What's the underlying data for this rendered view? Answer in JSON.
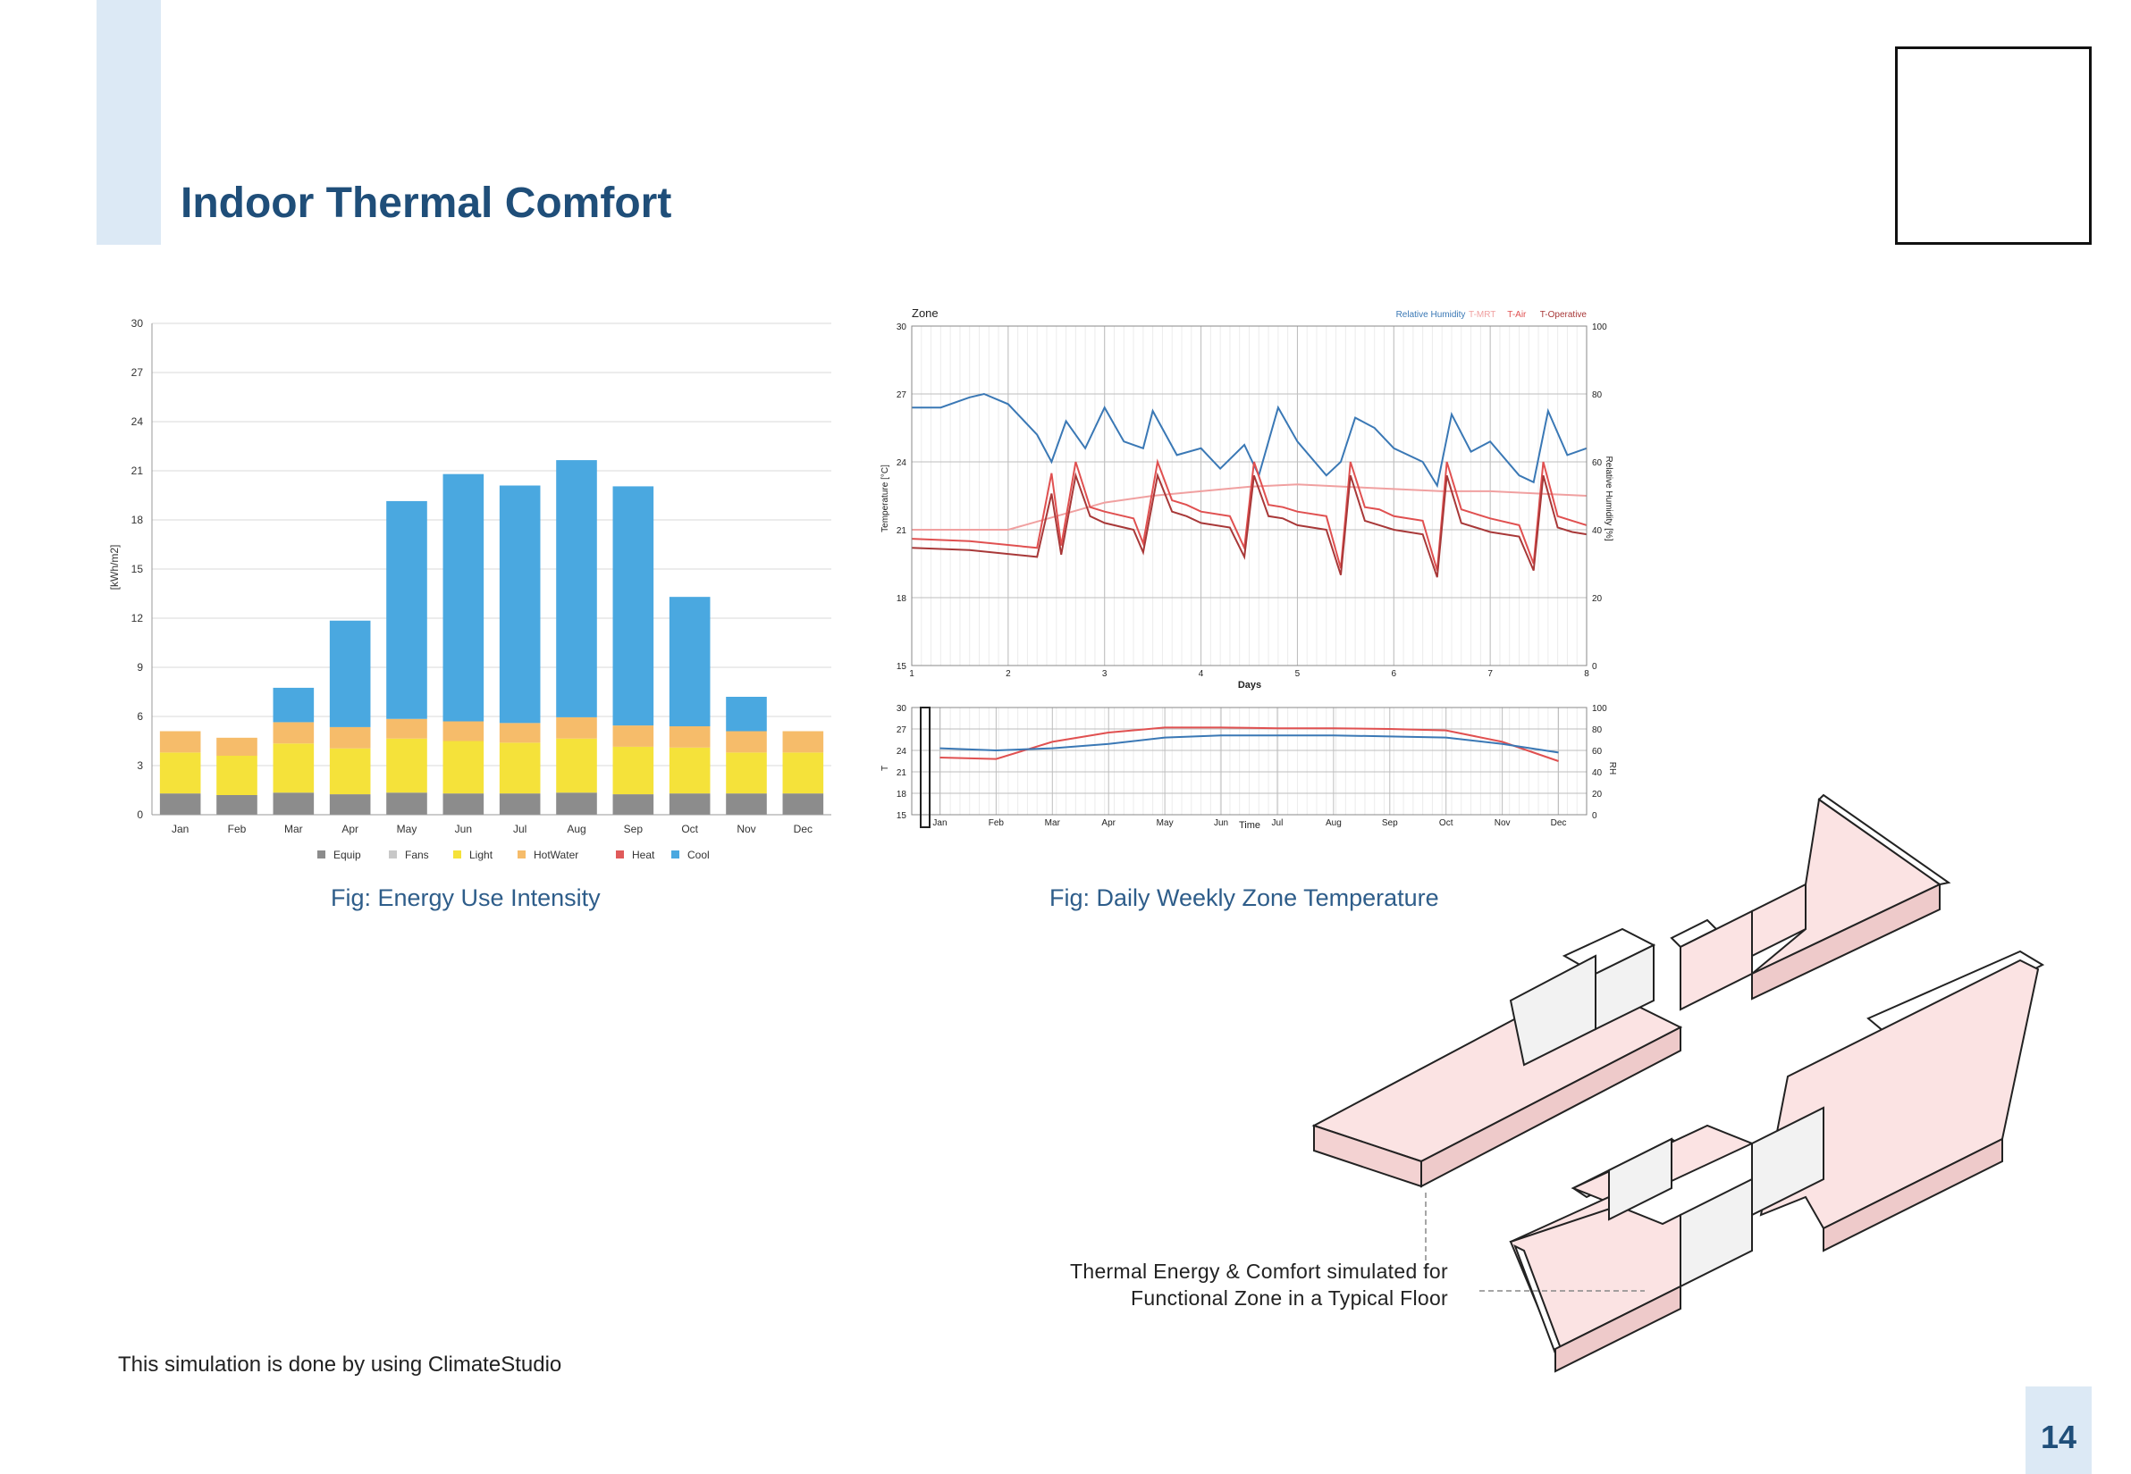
{
  "page": {
    "title": "Indoor Thermal Comfort",
    "page_number": "14",
    "footnote": "This simulation is done by using ClimateStudio",
    "callout_line1": "Thermal Energy & Comfort simulated for",
    "callout_line2": "Functional Zone in a Typical Floor",
    "colors": {
      "title": "#1f4e79",
      "accent": "#dce9f5",
      "caption": "#2e5d8a"
    }
  },
  "captions": {
    "eui": "Fig: Energy Use Intensity",
    "temp": "Fig: Daily Weekly Zone Temperature"
  },
  "chart_data": [
    {
      "type": "bar",
      "stacked": true,
      "title": "",
      "xlabel": "",
      "ylabel": "[kWh/m2]",
      "ylim": [
        0,
        30
      ],
      "yticks": [
        "0",
        "3",
        "6",
        "9",
        "12",
        "15",
        "18",
        "21",
        "24",
        "27",
        "30"
      ],
      "categories": [
        "Jan",
        "Feb",
        "Mar",
        "Apr",
        "May",
        "Jun",
        "Jul",
        "Aug",
        "Sep",
        "Oct",
        "Nov",
        "Dec"
      ],
      "grid": true,
      "legend_position": "bottom",
      "series": [
        {
          "name": "Equip",
          "color": "#8c8c8c",
          "values": [
            1.3,
            1.2,
            1.35,
            1.25,
            1.35,
            1.3,
            1.3,
            1.35,
            1.25,
            1.3,
            1.3,
            1.3
          ]
        },
        {
          "name": "Fans",
          "color": "#c8c8c8",
          "values": [
            0,
            0,
            0,
            0,
            0,
            0,
            0,
            0,
            0,
            0,
            0,
            0
          ]
        },
        {
          "name": "Light",
          "color": "#f5e23a",
          "values": [
            2.5,
            2.4,
            3.0,
            2.8,
            3.3,
            3.2,
            3.1,
            3.3,
            2.9,
            2.8,
            2.5,
            2.5
          ]
        },
        {
          "name": "HotWater",
          "color": "#f6bc6a",
          "values": [
            1.3,
            1.1,
            1.3,
            1.3,
            1.2,
            1.2,
            1.2,
            1.3,
            1.3,
            1.3,
            1.3,
            1.3
          ]
        },
        {
          "name": "Heat",
          "color": "#e05a5a",
          "values": [
            0,
            0,
            0,
            0,
            0,
            0,
            0,
            0,
            0,
            0,
            0,
            0
          ]
        },
        {
          "name": "Cool",
          "color": "#4aa8e0",
          "values": [
            0,
            0,
            2.1,
            6.5,
            13.3,
            15.1,
            14.5,
            15.7,
            14.6,
            7.9,
            2.1,
            0
          ]
        }
      ]
    },
    {
      "type": "line",
      "title": "Zone",
      "xlabel": "Days",
      "ylabel": "Temperature [°C]",
      "ylabel_right": "Relative Humidity [%]",
      "ylim": [
        15,
        30
      ],
      "ylim_right": [
        0,
        100
      ],
      "yticks": [
        "15",
        "18",
        "21",
        "24",
        "27",
        "30"
      ],
      "yticks_right": [
        "0",
        "20",
        "40",
        "60",
        "80",
        "100"
      ],
      "xticks": [
        "1",
        "2",
        "3",
        "4",
        "5",
        "6",
        "7",
        "8"
      ],
      "xlim": [
        1,
        8
      ],
      "legend_position": "top-right",
      "series": [
        {
          "name": "Relative Humidity",
          "axis": "right",
          "color": "#3a78b5",
          "x": [
            1,
            1.3,
            1.6,
            1.75,
            2.0,
            2.3,
            2.45,
            2.6,
            2.8,
            3.0,
            3.2,
            3.4,
            3.5,
            3.75,
            4.0,
            4.2,
            4.45,
            4.6,
            4.8,
            5.0,
            5.3,
            5.45,
            5.6,
            5.8,
            6.0,
            6.3,
            6.45,
            6.6,
            6.8,
            7.0,
            7.3,
            7.45,
            7.6,
            7.8,
            8.0
          ],
          "y": [
            76,
            76,
            79,
            80,
            77,
            68,
            60,
            72,
            64,
            76,
            66,
            64,
            75,
            62,
            64,
            58,
            65,
            56,
            76,
            66,
            56,
            60,
            73,
            70,
            64,
            60,
            53,
            74,
            63,
            66,
            56,
            54,
            75,
            62,
            64
          ]
        },
        {
          "name": "T-MRT",
          "axis": "left",
          "color": "#f0a0a0",
          "x": [
            1,
            1.5,
            2.0,
            2.5,
            3.0,
            3.5,
            4.0,
            4.5,
            5.0,
            5.5,
            6.0,
            6.5,
            7.0,
            7.5,
            8.0
          ],
          "y": [
            21.0,
            21.0,
            21.0,
            21.6,
            22.2,
            22.5,
            22.7,
            22.9,
            23.0,
            22.9,
            22.8,
            22.7,
            22.7,
            22.6,
            22.5
          ]
        },
        {
          "name": "T-Air",
          "axis": "left",
          "color": "#e05050",
          "x": [
            1,
            1.6,
            2.3,
            2.45,
            2.55,
            2.7,
            2.85,
            3.0,
            3.3,
            3.4,
            3.55,
            3.7,
            3.85,
            4.0,
            4.3,
            4.45,
            4.55,
            4.7,
            4.85,
            5.0,
            5.3,
            5.45,
            5.55,
            5.7,
            5.85,
            6.0,
            6.3,
            6.45,
            6.55,
            6.7,
            6.85,
            7.0,
            7.3,
            7.45,
            7.55,
            7.7,
            7.85,
            8.0
          ],
          "y": [
            20.6,
            20.5,
            20.2,
            23.5,
            20.3,
            24.0,
            22.0,
            21.8,
            21.5,
            20.4,
            24.0,
            22.3,
            22.1,
            21.8,
            21.6,
            20.2,
            24.0,
            22.1,
            22.0,
            21.8,
            21.6,
            19.3,
            24.0,
            22.0,
            21.9,
            21.6,
            21.4,
            19.2,
            24.0,
            21.9,
            21.7,
            21.5,
            21.2,
            19.5,
            24.0,
            21.6,
            21.4,
            21.2
          ]
        },
        {
          "name": "T-Operative",
          "axis": "left",
          "color": "#a83838",
          "x": [
            1,
            1.6,
            2.3,
            2.45,
            2.55,
            2.7,
            2.85,
            3.0,
            3.3,
            3.4,
            3.55,
            3.7,
            3.85,
            4.0,
            4.3,
            4.45,
            4.55,
            4.7,
            4.85,
            5.0,
            5.3,
            5.45,
            5.55,
            5.7,
            5.85,
            6.0,
            6.3,
            6.45,
            6.55,
            6.7,
            6.85,
            7.0,
            7.3,
            7.45,
            7.55,
            7.7,
            7.85,
            8.0
          ],
          "y": [
            20.2,
            20.1,
            19.8,
            22.6,
            19.9,
            23.4,
            21.6,
            21.3,
            21.0,
            20.0,
            23.4,
            21.8,
            21.6,
            21.3,
            21.1,
            19.8,
            23.4,
            21.6,
            21.5,
            21.2,
            21.0,
            19.0,
            23.4,
            21.4,
            21.2,
            21.0,
            20.8,
            18.9,
            23.4,
            21.3,
            21.1,
            20.9,
            20.7,
            19.2,
            23.4,
            21.1,
            20.9,
            20.8
          ]
        }
      ]
    },
    {
      "type": "line",
      "title": "",
      "xlabel": "Time",
      "ylabel": "T",
      "ylabel_right": "RH",
      "ylim": [
        15,
        30
      ],
      "ylim_right": [
        0,
        100
      ],
      "yticks": [
        "15",
        "18",
        "21",
        "24",
        "27",
        "30"
      ],
      "yticks_right": [
        "0",
        "20",
        "40",
        "60",
        "80",
        "100"
      ],
      "categories": [
        "Jan",
        "Feb",
        "Mar",
        "Apr",
        "May",
        "Jun",
        "Jul",
        "Aug",
        "Sep",
        "Oct",
        "Nov",
        "Dec"
      ],
      "series": [
        {
          "name": "Temperature",
          "axis": "left",
          "color": "#e05050",
          "values": [
            23.0,
            22.8,
            25.2,
            26.5,
            27.2,
            27.2,
            27.1,
            27.1,
            27.0,
            26.8,
            25.2,
            22.5
          ]
        },
        {
          "name": "Relative Humidity",
          "axis": "right",
          "color": "#3a78b5",
          "values": [
            62,
            60,
            62,
            66,
            72,
            74,
            74,
            74,
            73,
            72,
            66,
            58
          ]
        }
      ]
    }
  ]
}
